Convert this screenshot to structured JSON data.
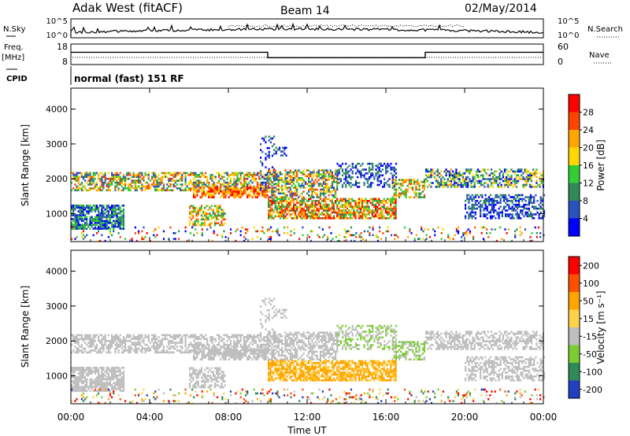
{
  "header": {
    "station": "Adak West (fitACF)",
    "beam": "Beam 14",
    "date": "02/May/2014",
    "cpid_label": "CPID",
    "cpid_value": "normal (fast) 151 RF"
  },
  "top_panels": {
    "nsky_label": "N.Sky",
    "nsearch_label": "N.Search",
    "noise_ticks": [
      "10^5",
      "10^0"
    ],
    "freq_label": "Freq.",
    "freq_unit": "[MHz]",
    "freq_ticks": [
      "18",
      "8"
    ],
    "nave_label": "Nave",
    "nave_ticks": [
      "60",
      "0"
    ]
  },
  "chart_data": [
    {
      "type": "heatmap",
      "name": "power",
      "xlabel": "",
      "ylabel": "Slant Range [km]",
      "yticks": [
        "1000",
        "2000",
        "3000",
        "4000"
      ],
      "ylim": [
        200,
        4600
      ],
      "xlim": [
        0,
        24
      ],
      "colorbar_label": "Power [dB]",
      "colorbar_ticks": [
        "4",
        "8",
        "12",
        "16",
        "20",
        "24",
        "28"
      ],
      "colors": [
        "#0000ff",
        "#2a52be",
        "#2e8b57",
        "#32cd32",
        "#ffd700",
        "#ffa500",
        "#ff4500",
        "#ff0000"
      ]
    },
    {
      "type": "heatmap",
      "name": "velocity",
      "xlabel": "Time UT",
      "ylabel": "Slant Range [km]",
      "yticks": [
        "1000",
        "2000",
        "3000",
        "4000"
      ],
      "ylim": [
        200,
        4600
      ],
      "xlim": [
        0,
        24
      ],
      "xticks": [
        "00:00",
        "04:00",
        "08:00",
        "12:00",
        "16:00",
        "20:00",
        "00:00"
      ],
      "colorbar_label": "Velocity [m s⁻¹]",
      "colorbar_ticks": [
        "200",
        "100",
        "50",
        "15",
        "-15",
        "-50",
        "-100",
        "-200"
      ],
      "colors": [
        "#2040c0",
        "#2e8b57",
        "#7ccd32",
        "#bebebe",
        "#ffd24a",
        "#ffa500",
        "#ff5000",
        "#ff0000"
      ]
    }
  ]
}
